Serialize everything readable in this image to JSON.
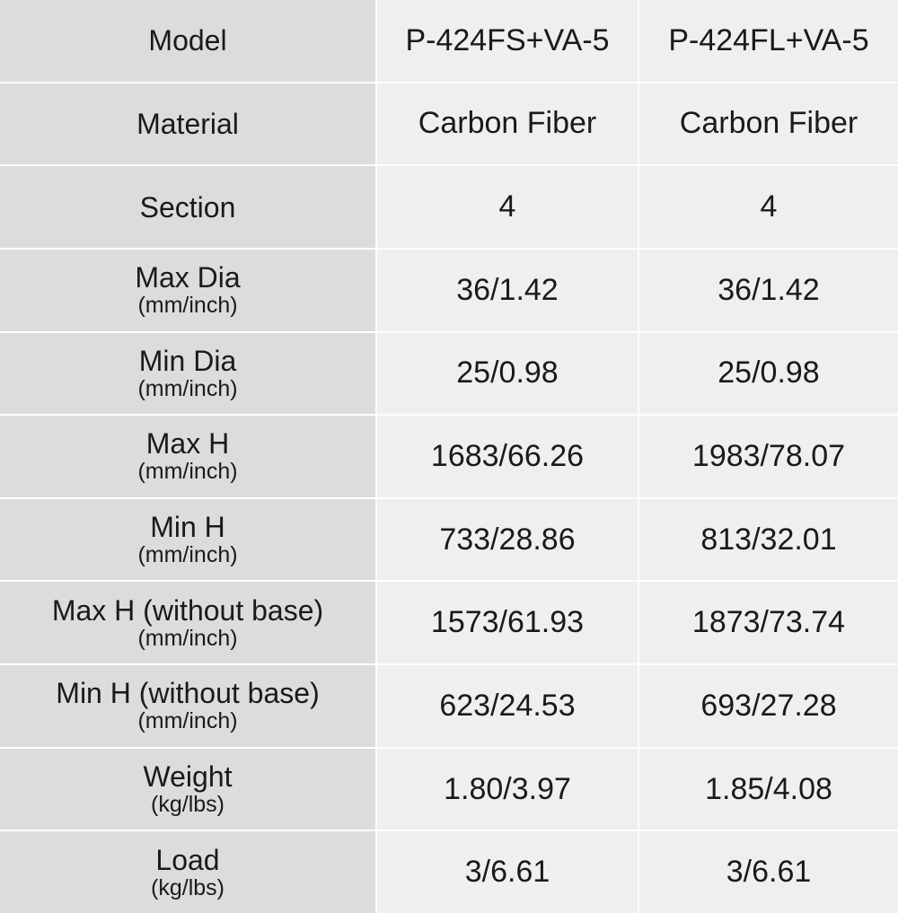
{
  "table": {
    "rows": [
      {
        "label": "Model",
        "cells": [
          "P-424FS+VA-5",
          "P-424FL+VA-5"
        ]
      },
      {
        "label": "Material",
        "cells": [
          "Carbon Fiber",
          "Carbon Fiber"
        ]
      },
      {
        "label": "Section",
        "cells": [
          "4",
          "4"
        ]
      },
      {
        "label": "Max Dia",
        "unit": "(mm/inch)",
        "cells": [
          "36/1.42",
          "36/1.42"
        ]
      },
      {
        "label": "Min Dia",
        "unit": "(mm/inch)",
        "cells": [
          "25/0.98",
          "25/0.98"
        ]
      },
      {
        "label": "Max H",
        "unit": "(mm/inch)",
        "cells": [
          "1683/66.26",
          "1983/78.07"
        ]
      },
      {
        "label": "Min H",
        "unit": "(mm/inch)",
        "cells": [
          "733/28.86",
          "813/32.01"
        ]
      },
      {
        "label": "Max H (without base)",
        "unit": "(mm/inch)",
        "cells": [
          "1573/61.93",
          "1873/73.74"
        ]
      },
      {
        "label": "Min H (without base)",
        "unit": "(mm/inch)",
        "cells": [
          "623/24.53",
          "693/27.28"
        ]
      },
      {
        "label": "Weight",
        "unit": "(kg/lbs)",
        "cells": [
          "1.80/3.97",
          "1.85/4.08"
        ]
      },
      {
        "label": "Load",
        "unit": "(kg/lbs)",
        "cells": [
          "3/6.61",
          "3/6.61"
        ]
      }
    ]
  }
}
